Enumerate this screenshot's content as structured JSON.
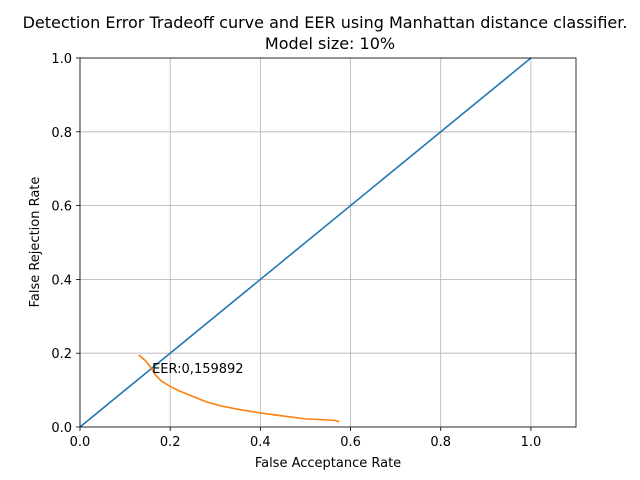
{
  "chart_data": {
    "type": "line",
    "title_line1": "Detection Error Tradeoff curve and EER using Manhattan distance classifier.",
    "title_line2": "Model size: 10%",
    "xlabel": "False Acceptance Rate",
    "ylabel": "False Rejection Rate",
    "xlim": [
      0,
      1.1
    ],
    "ylim": [
      0,
      1.0
    ],
    "xticks": [
      0.0,
      0.2,
      0.4,
      0.6,
      0.8,
      1.0
    ],
    "xtick_labels": [
      "0.0",
      "0.2",
      "0.4",
      "0.6",
      "0.8",
      "1.0"
    ],
    "yticks": [
      0.0,
      0.2,
      0.4,
      0.6,
      0.8,
      1.0
    ],
    "ytick_labels": [
      "0.0",
      "0.2",
      "0.4",
      "0.6",
      "0.8",
      "1.0"
    ],
    "grid": true,
    "series": [
      {
        "color": "#1f77b4",
        "x": [
          0.0,
          1.0
        ],
        "y": [
          0.0,
          1.0
        ]
      },
      {
        "color": "#ff7f0e",
        "x": [
          0.13,
          0.145,
          0.155,
          0.16,
          0.168,
          0.18,
          0.2,
          0.22,
          0.25,
          0.28,
          0.31,
          0.35,
          0.4,
          0.45,
          0.5,
          0.55,
          0.565,
          0.575
        ],
        "y": [
          0.195,
          0.18,
          0.165,
          0.155,
          0.14,
          0.125,
          0.11,
          0.098,
          0.083,
          0.068,
          0.058,
          0.048,
          0.038,
          0.03,
          0.022,
          0.019,
          0.018,
          0.014
        ]
      }
    ],
    "annotation": {
      "text": "EER:0,159892",
      "x": 0.159892,
      "y": 0.159892
    }
  }
}
